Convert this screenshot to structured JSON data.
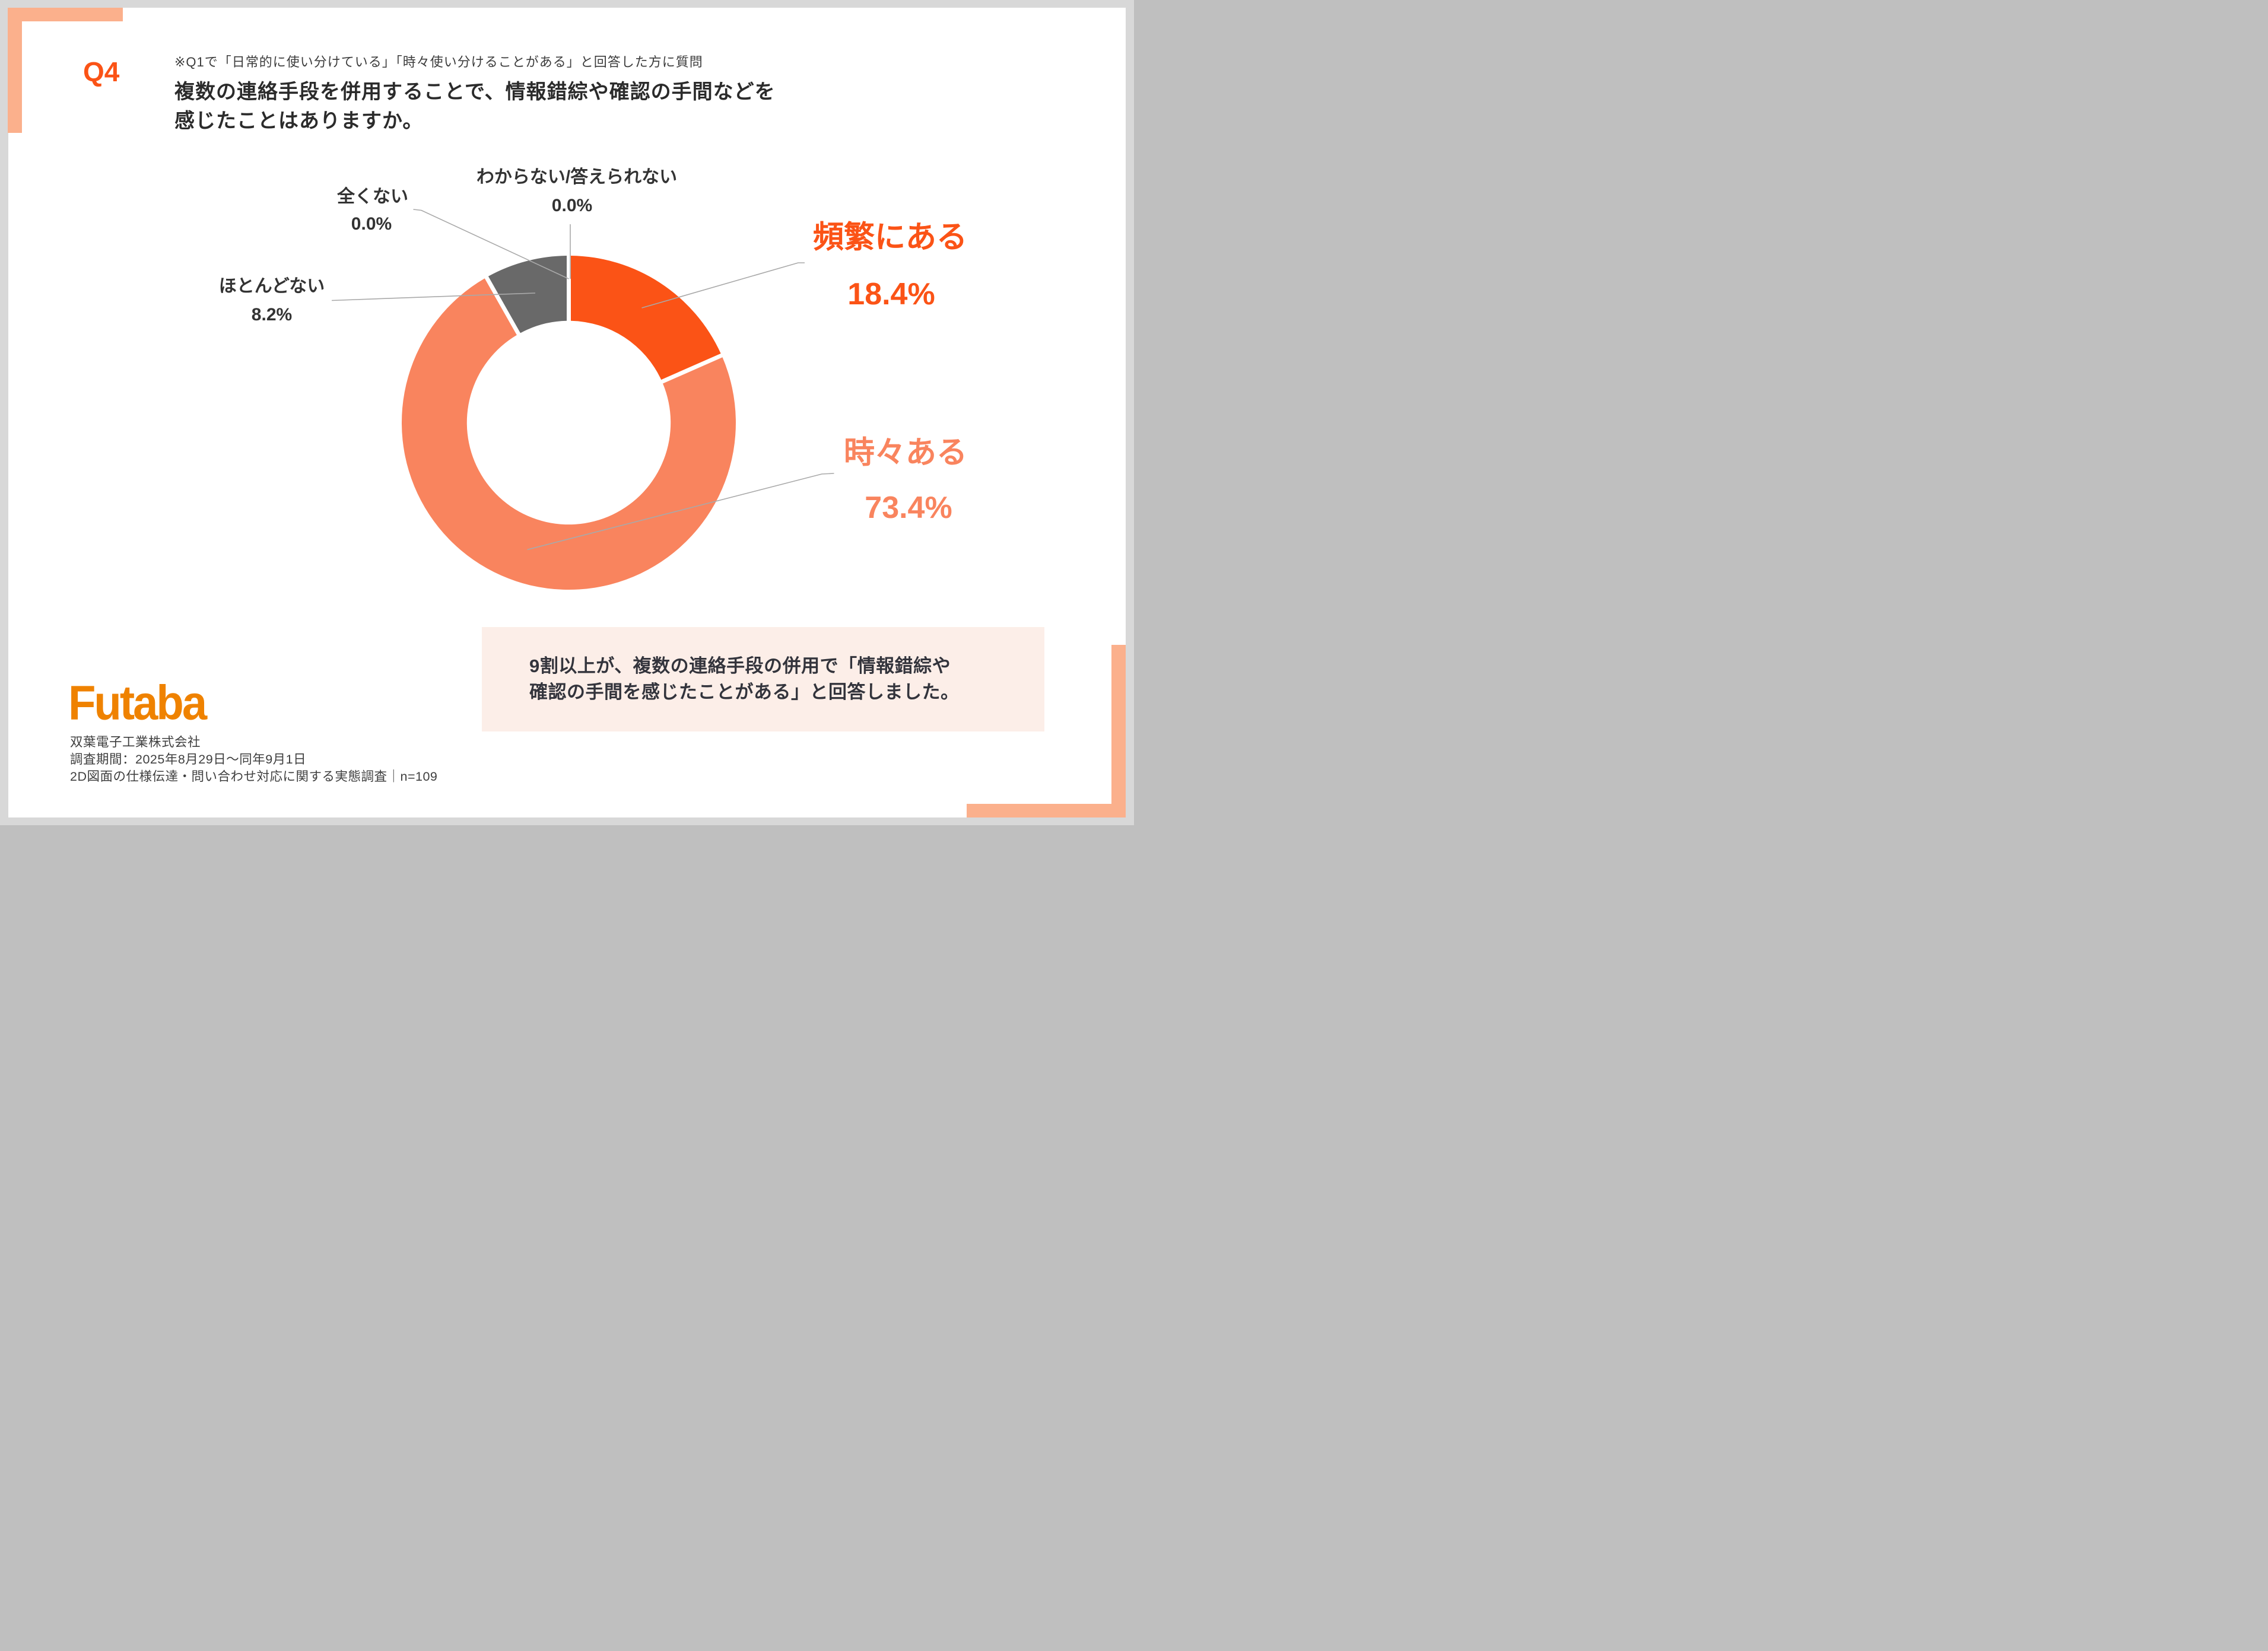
{
  "header": {
    "q_label": "Q4",
    "note": "※Q1で「日常的に使い分けている」「時々使い分けることがある」と回答した方に質問",
    "title_line1": "複数の連絡手段を併用することで、情報錯綜や確認の手間などを",
    "title_line2": "感じたことはありますか。"
  },
  "chart_data": {
    "type": "pie",
    "subtype": "donut",
    "title": "",
    "unit": "%",
    "n": 109,
    "start_angle_deg": 0,
    "direction": "clockwise",
    "inner_radius_ratio": 0.61,
    "segments": [
      {
        "label": "頻繁にある",
        "value": 18.4,
        "display": "18.4%",
        "color": "#fb5316"
      },
      {
        "label": "時々ある",
        "value": 73.4,
        "display": "73.4%",
        "color": "#f9845e"
      },
      {
        "label": "ほとんどない",
        "value": 8.2,
        "display": "8.2%",
        "color": "#696969"
      },
      {
        "label": "全くない",
        "value": 0.0,
        "display": "0.0%",
        "color": "#333333"
      },
      {
        "label": "わからない/答えられない",
        "value": 0.0,
        "display": "0.0%",
        "color": "#333333"
      }
    ]
  },
  "callout": {
    "line1": "9割以上が、複数の連絡手段の併用で「情報錯綜や",
    "line2": "確認の手間を感じたことがある」と回答しました。"
  },
  "footer": {
    "logo_text": "Futaba",
    "company": "双葉電子工業株式会社",
    "period": "調査期間：2025年8月29日〜同年9月1日",
    "survey": "2D図面の仕様伝達・問い合わせ対応に関する実態調査｜n=109"
  },
  "colors": {
    "accent_orange": "#fb5316",
    "accent_salmon": "#f9845e",
    "accent_gray": "#696969",
    "corner_salmon": "#fbb08c",
    "page_bg": "#d8d8d8",
    "callout_bg": "#fceee8",
    "logo_orange": "#ef8200",
    "leader_line": "#a9a9a9",
    "text_dark": "#333333"
  }
}
